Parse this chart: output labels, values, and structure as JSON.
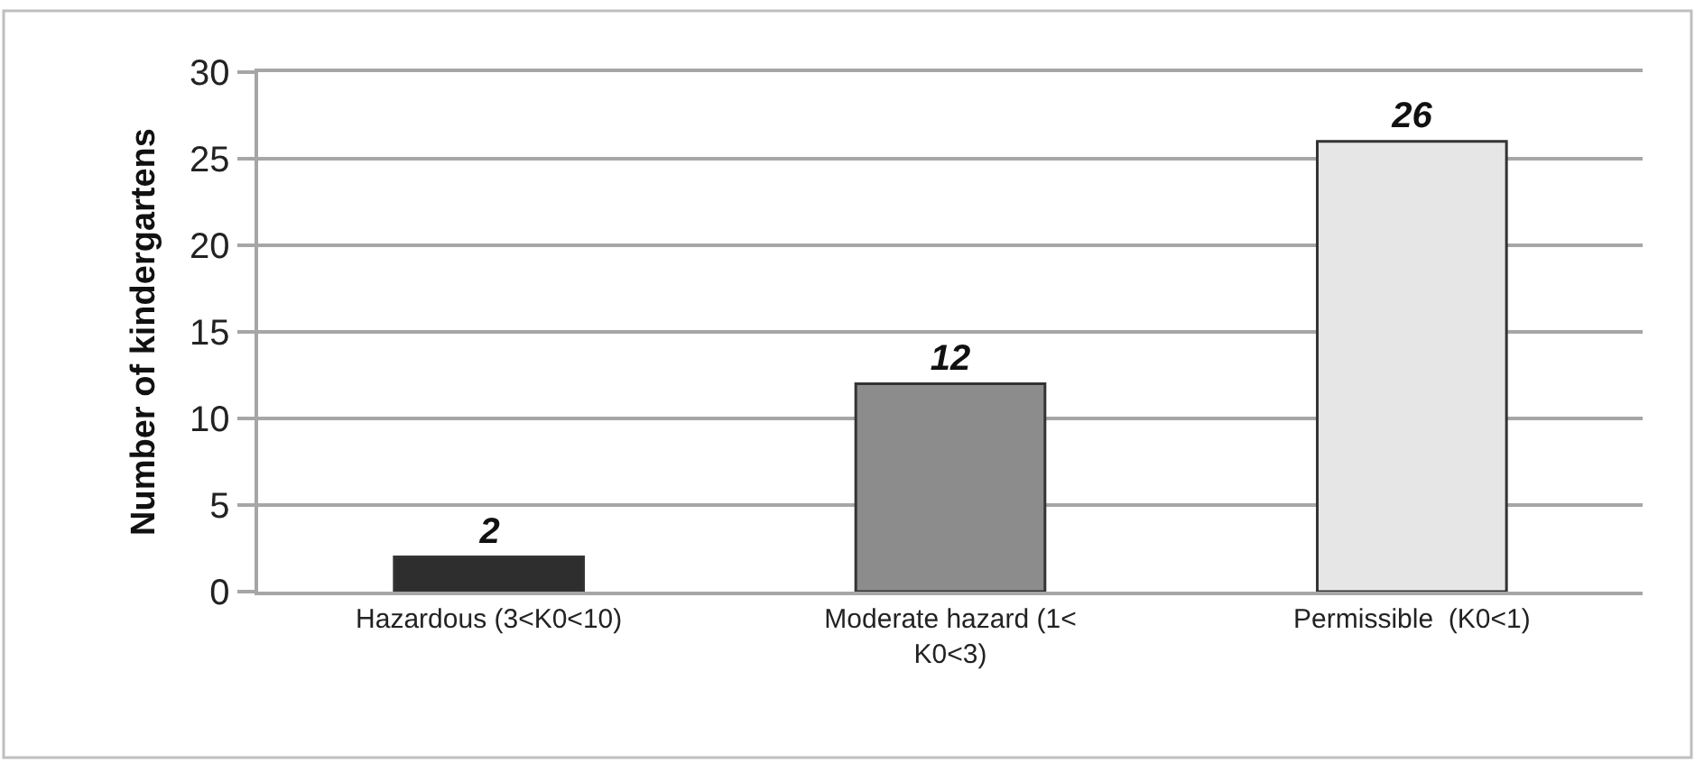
{
  "chart_data": {
    "type": "bar",
    "ylabel": "Number of kindergartens",
    "categories": [
      "Hazardous (3<K0<10)",
      "Moderate hazard (1< K0<3)",
      "Permissible  (K0<1)"
    ],
    "values": [
      2,
      12,
      26
    ],
    "colors": [
      "#2e2e2e",
      "#8c8c8c",
      "#e6e6e6"
    ],
    "ylim": [
      0,
      30
    ],
    "yticks": [
      0,
      5,
      10,
      15,
      20,
      25,
      30
    ],
    "grid": "y",
    "data_labels": true
  }
}
